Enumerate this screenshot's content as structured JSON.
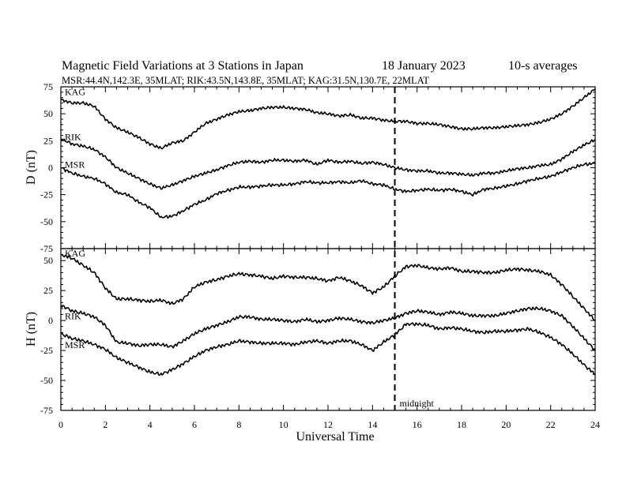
{
  "header": {
    "title": "Magnetic Field Variations at 3 Stations in Japan",
    "date": "18 January 2023",
    "averaging": "10-s averages",
    "stations_line": "MSR:44.4N,142.3E, 35MLAT;  RIK:43.5N,143.8E, 35MLAT;  KAG:31.5N,130.7E, 22MLAT"
  },
  "chart_data": [
    {
      "type": "line",
      "panel": "top",
      "ylabel": "D (nT)",
      "ylim": [
        -75,
        75
      ],
      "yticks": [
        75,
        50,
        25,
        0,
        -25,
        -50,
        -75
      ],
      "xlim": [
        0,
        24
      ],
      "xticks": [
        0,
        2,
        4,
        6,
        8,
        10,
        12,
        14,
        16,
        18,
        20,
        22,
        24
      ],
      "x": [
        0,
        0.5,
        1,
        1.5,
        2,
        2.5,
        3,
        3.5,
        4,
        4.5,
        5,
        5.5,
        6,
        6.5,
        7,
        7.5,
        8,
        8.5,
        9,
        9.5,
        10,
        10.5,
        11,
        11.5,
        12,
        12.5,
        13,
        13.5,
        14,
        14.5,
        15,
        15.5,
        16,
        16.5,
        17,
        17.5,
        18,
        18.5,
        19,
        19.5,
        20,
        20.5,
        21,
        21.5,
        22,
        22.5,
        23,
        23.5,
        24
      ],
      "series": [
        {
          "name": "KAG",
          "values": [
            63,
            60,
            60,
            57,
            45,
            37,
            33,
            28,
            22,
            18,
            23,
            25,
            33,
            41,
            45,
            49,
            52,
            53,
            55,
            56,
            56,
            55,
            54,
            51,
            50,
            48,
            49,
            46,
            46,
            44,
            43,
            43,
            41,
            41,
            40,
            38,
            36,
            36,
            37,
            37,
            38,
            39,
            40,
            42,
            45,
            50,
            57,
            65,
            73
          ]
        },
        {
          "name": "RIK",
          "values": [
            27,
            22,
            20,
            17,
            10,
            0,
            -5,
            -10,
            -15,
            -19,
            -16,
            -12,
            -8,
            -5,
            -2,
            2,
            5,
            6,
            5,
            7,
            7,
            6,
            7,
            3,
            7,
            5,
            6,
            4,
            5,
            3,
            0,
            -2,
            -3,
            -3,
            -5,
            -5,
            -6,
            -7,
            -5,
            -5,
            -3,
            -1,
            0,
            2,
            3,
            8,
            15,
            21,
            26
          ]
        },
        {
          "name": "MSR",
          "values": [
            0,
            -5,
            -8,
            -10,
            -15,
            -23,
            -25,
            -32,
            -37,
            -46,
            -45,
            -40,
            -34,
            -30,
            -24,
            -21,
            -18,
            -18,
            -17,
            -16,
            -16,
            -15,
            -13,
            -14,
            -14,
            -13,
            -14,
            -12,
            -15,
            -16,
            -20,
            -22,
            -21,
            -20,
            -21,
            -20,
            -22,
            -25,
            -20,
            -19,
            -17,
            -15,
            -12,
            -10,
            -8,
            -4,
            0,
            3,
            4
          ]
        }
      ],
      "series_label_positions": [
        "top-left",
        "upper-left",
        "middle-left"
      ]
    },
    {
      "type": "line",
      "panel": "bottom",
      "ylabel": "H (nT)",
      "ylim": [
        -75,
        60
      ],
      "yticks": [
        50,
        25,
        0,
        -25,
        -50,
        -75
      ],
      "xlim": [
        0,
        24
      ],
      "xticks": [
        0,
        2,
        4,
        6,
        8,
        10,
        12,
        14,
        16,
        18,
        20,
        22,
        24
      ],
      "xlabel": "Universal Time",
      "x": [
        0,
        0.5,
        1,
        1.5,
        2,
        2.5,
        3,
        3.5,
        4,
        4.5,
        5,
        5.5,
        6,
        6.5,
        7,
        7.5,
        8,
        8.5,
        9,
        9.5,
        10,
        10.5,
        11,
        11.5,
        12,
        12.5,
        13,
        13.5,
        14,
        14.5,
        15,
        15.5,
        16,
        16.5,
        17,
        17.5,
        18,
        18.5,
        19,
        19.5,
        20,
        20.5,
        21,
        21.5,
        22,
        22.5,
        23,
        23.5,
        24
      ],
      "series": [
        {
          "name": "KAG",
          "values": [
            55,
            52,
            46,
            40,
            27,
            18,
            18,
            17,
            16,
            17,
            14,
            18,
            28,
            32,
            34,
            37,
            39,
            38,
            37,
            35,
            37,
            36,
            36,
            35,
            33,
            36,
            33,
            29,
            23,
            28,
            37,
            45,
            46,
            44,
            43,
            44,
            41,
            41,
            40,
            40,
            42,
            43,
            42,
            41,
            38,
            30,
            20,
            10,
            0
          ]
        },
        {
          "name": "RIK",
          "values": [
            13,
            8,
            6,
            3,
            -4,
            -18,
            -19,
            -21,
            -20,
            -20,
            -22,
            -17,
            -11,
            -7,
            -4,
            -1,
            3,
            3,
            1,
            1,
            0,
            -1,
            1,
            -1,
            0,
            2,
            1,
            -1,
            -2,
            0,
            2,
            6,
            8,
            7,
            5,
            7,
            6,
            4,
            4,
            4,
            6,
            8,
            10,
            10,
            8,
            4,
            -5,
            -15,
            -25
          ]
        },
        {
          "name": "MSR",
          "values": [
            -11,
            -15,
            -17,
            -20,
            -24,
            -31,
            -35,
            -39,
            -43,
            -45,
            -41,
            -36,
            -30,
            -25,
            -22,
            -20,
            -17,
            -18,
            -19,
            -19,
            -19,
            -20,
            -18,
            -17,
            -19,
            -17,
            -17,
            -20,
            -25,
            -18,
            -12,
            -3,
            -3,
            -4,
            -7,
            -6,
            -7,
            -9,
            -10,
            -9,
            -9,
            -8,
            -7,
            -10,
            -14,
            -20,
            -28,
            -37,
            -45
          ]
        }
      ],
      "series_label_positions": [
        "upper-left",
        "lower-left",
        "lower-left"
      ]
    }
  ],
  "annotations": {
    "midnight_label": "midnight",
    "midnight_ut": 15
  }
}
